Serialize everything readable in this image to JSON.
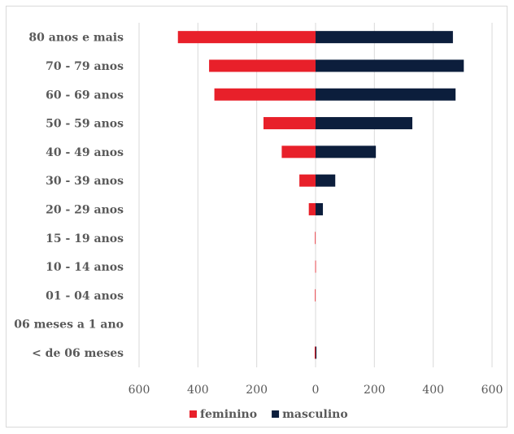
{
  "chart_data": {
    "type": "bar",
    "orientation": "horizontal",
    "variant": "population-pyramid",
    "categories": [
      "80 anos e mais",
      "70 - 79 anos",
      "60 - 69 anos",
      "50 - 59 anos",
      "40 - 49 anos",
      "30 - 39 anos",
      "20 - 29 anos",
      "15 - 19 anos",
      "10 - 14 anos",
      "01 - 04 anos",
      "06 meses a 1 ano",
      "< de 06 meses"
    ],
    "series": [
      {
        "name": "feminino",
        "color": "#e8202a",
        "direction": "left",
        "values": [
          468,
          362,
          344,
          177,
          115,
          55,
          23,
          2,
          1,
          2,
          0,
          3
        ]
      },
      {
        "name": "masculino",
        "color": "#0c1e3c",
        "direction": "right",
        "values": [
          467,
          504,
          476,
          329,
          205,
          67,
          25,
          0,
          0,
          0,
          0,
          3
        ]
      }
    ],
    "x_ticks": [
      600,
      400,
      200,
      0,
      200,
      400,
      600
    ],
    "xlim": [
      -600,
      600
    ],
    "grid": "vertical",
    "legend": "bottom"
  }
}
